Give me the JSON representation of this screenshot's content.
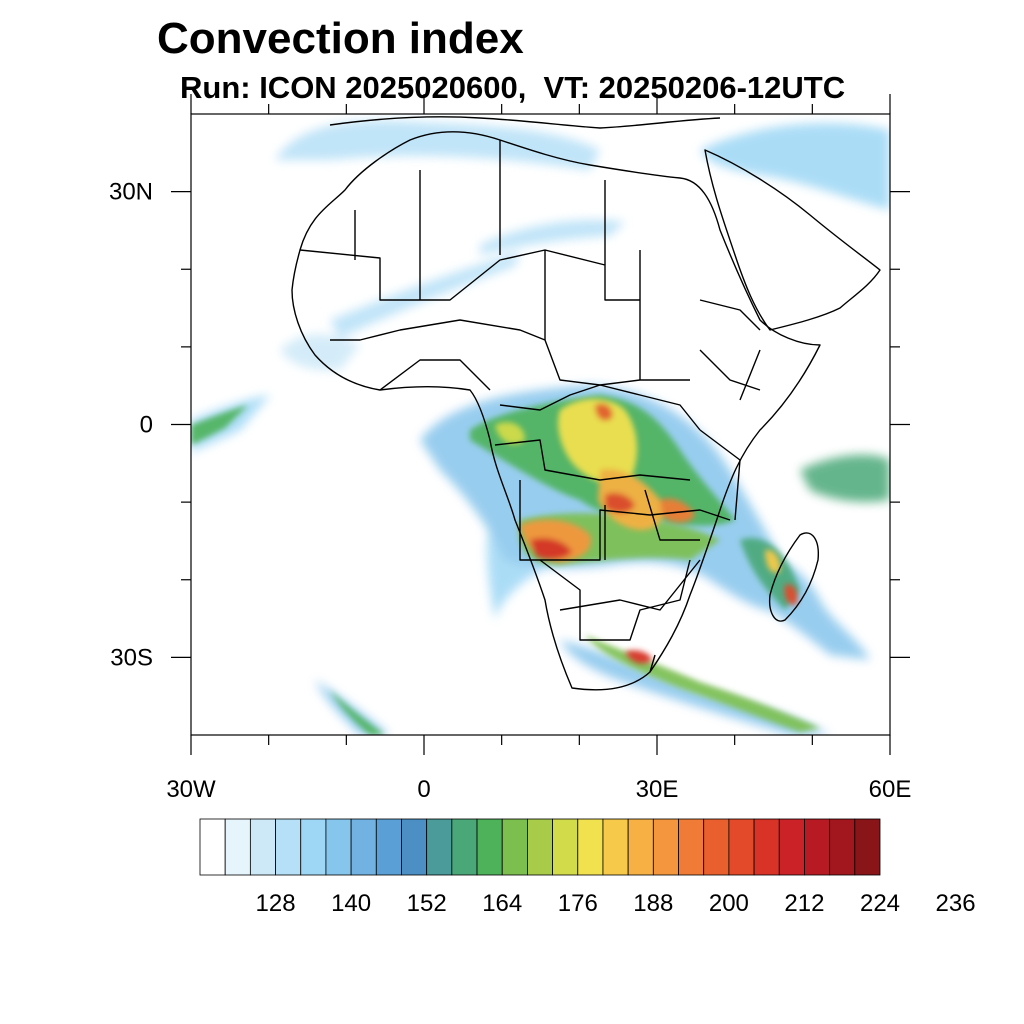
{
  "title": "Convection index",
  "subtitle": "Run: ICON 2025020600,  VT: 20250206-12UTC",
  "map": {
    "lon_range": [
      -30,
      60
    ],
    "lat_range": [
      -40,
      40
    ],
    "lat_ticks": [
      {
        "lat": 30,
        "label": "30N"
      },
      {
        "lat": 0,
        "label": "0"
      },
      {
        "lat": -30,
        "label": "30S"
      }
    ],
    "lon_ticks": [
      {
        "lon": -30,
        "label": "30W"
      },
      {
        "lon": 0,
        "label": "0"
      },
      {
        "lon": 30,
        "label": "30E"
      },
      {
        "lon": 60,
        "label": "60E"
      }
    ],
    "minor_lat_ticks": [
      20,
      10,
      -10,
      -20
    ],
    "minor_lon_ticks": [
      -20,
      -10,
      10,
      20,
      40,
      50
    ]
  },
  "colorbar": {
    "labels": [
      "128",
      "140",
      "152",
      "164",
      "176",
      "188",
      "200",
      "212",
      "224",
      "236"
    ],
    "colors": [
      "#ffffff",
      "#e6f4fc",
      "#cde9f8",
      "#b6e0f7",
      "#9dd7f5",
      "#86c5ec",
      "#72b2e3",
      "#5a9fd6",
      "#4b8fc5",
      "#4a9b9a",
      "#4aa878",
      "#4db25a",
      "#7cbf4e",
      "#a8cc4a",
      "#d2dc4a",
      "#f1e14f",
      "#f6c94a",
      "#f6b043",
      "#f4963d",
      "#ef7b36",
      "#e9602e",
      "#e24a29",
      "#d93327",
      "#cb2228",
      "#b81a23",
      "#a2161d",
      "#8a1519"
    ]
  }
}
